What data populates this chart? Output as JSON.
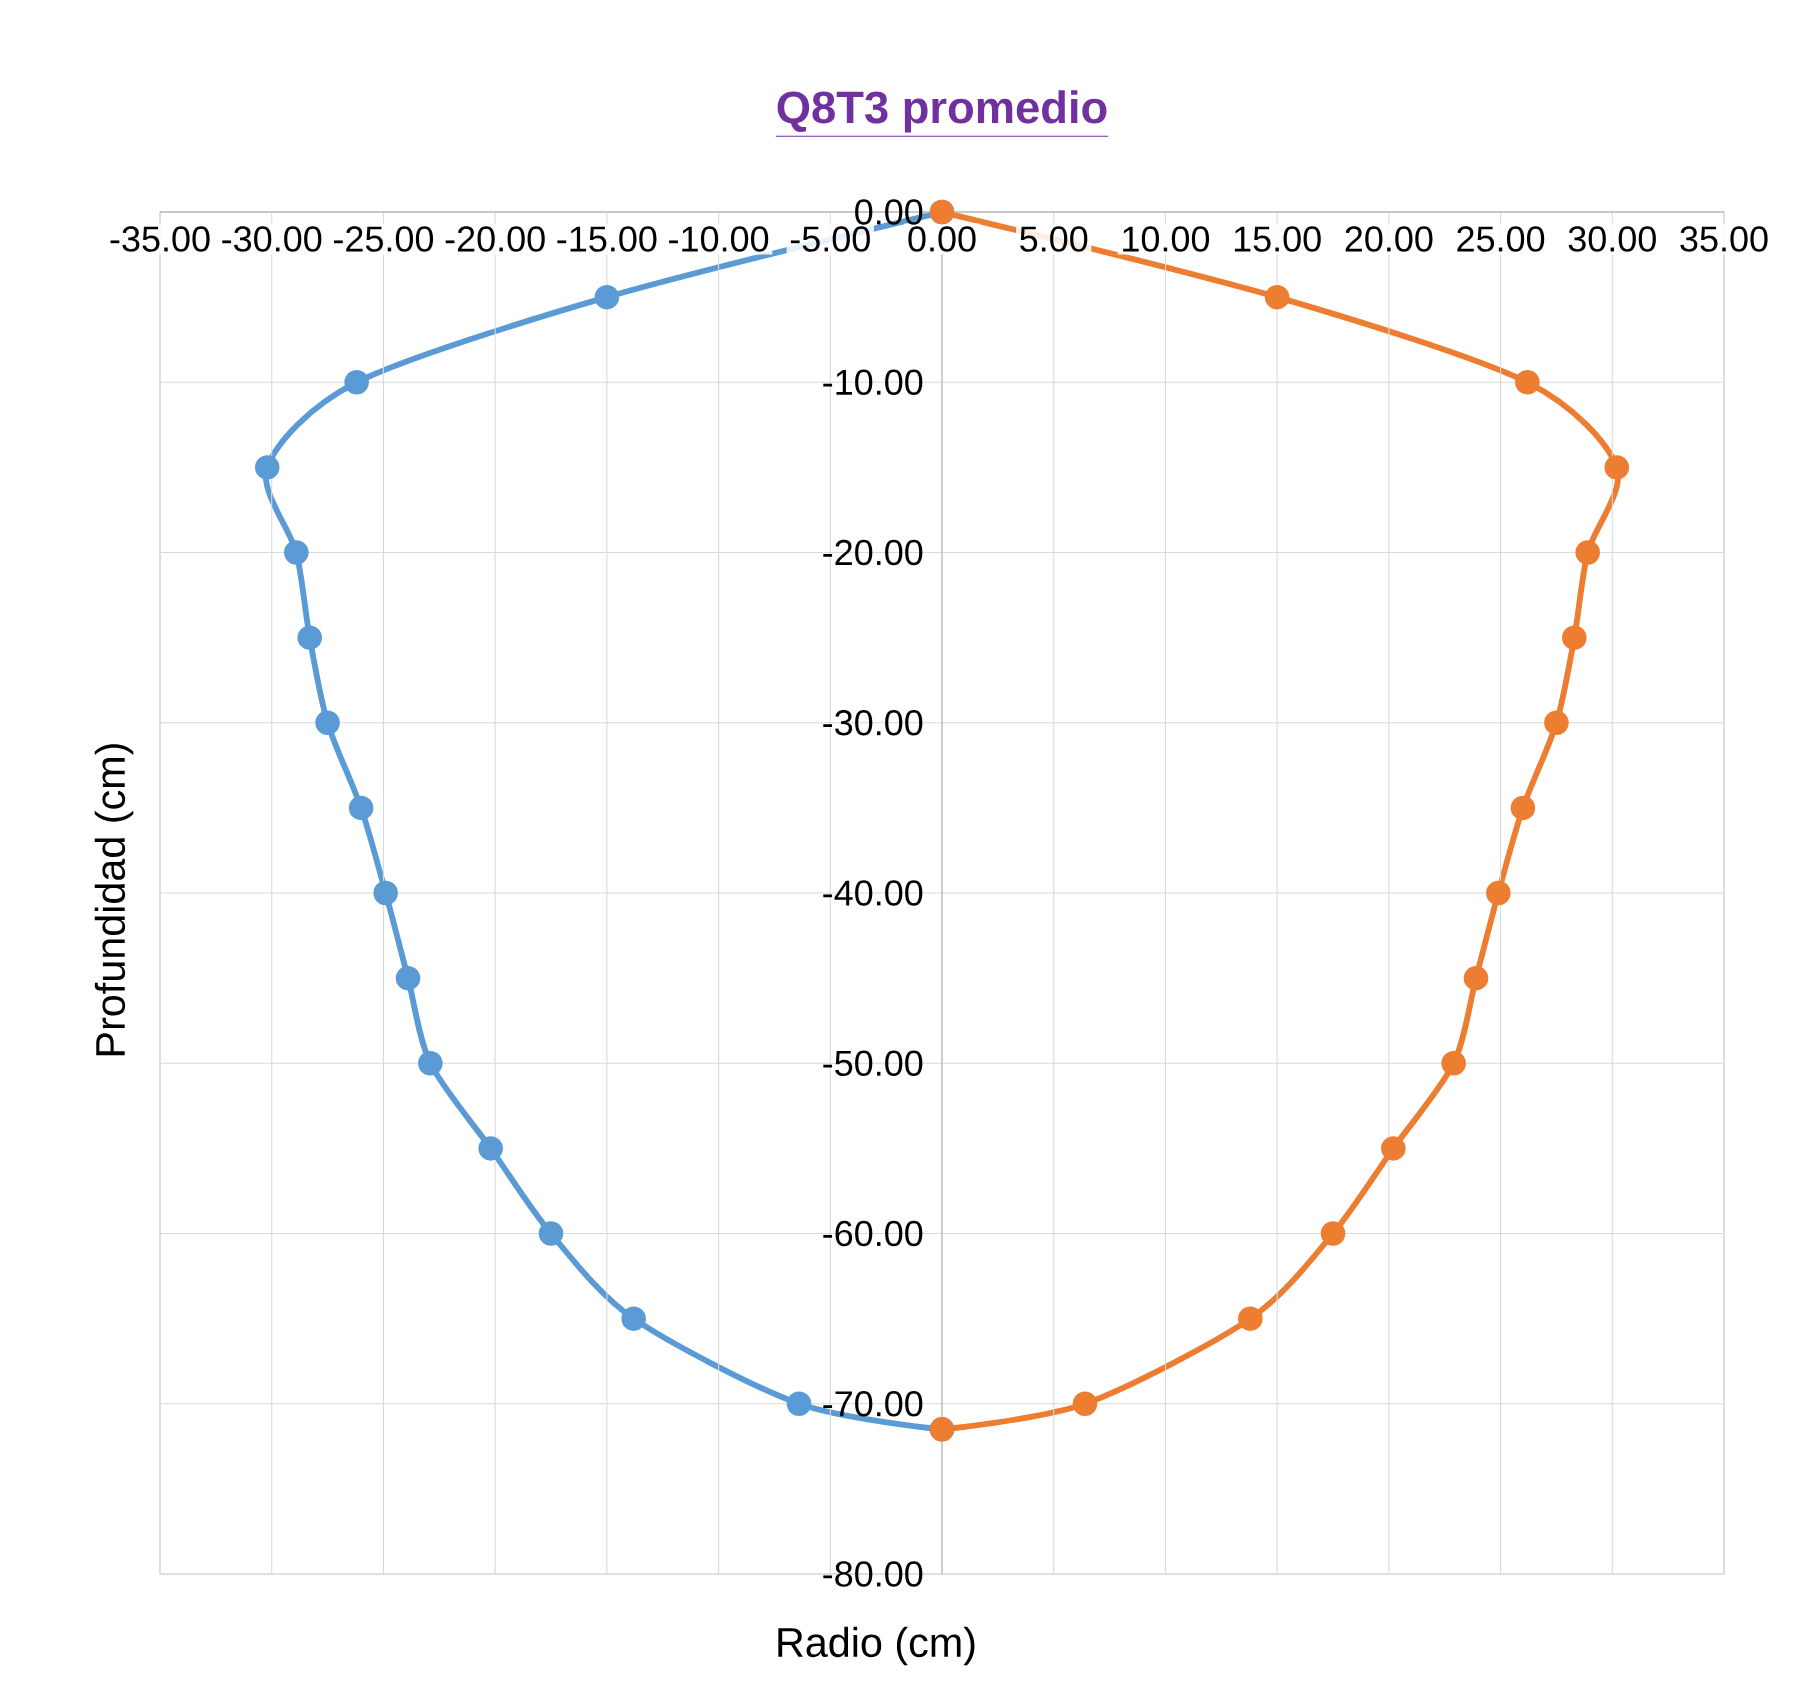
{
  "chart_data": {
    "type": "line",
    "title": "Q8T3 promedio",
    "xlabel": "Radio (cm)",
    "ylabel": "Profundidad (cm)",
    "marker": "circle",
    "grid": true,
    "xlim": [
      -35,
      35
    ],
    "ylim": [
      -80,
      0
    ],
    "xticks": [
      {
        "value": -35,
        "label": "-35.00"
      },
      {
        "value": -30,
        "label": "-30.00"
      },
      {
        "value": -25,
        "label": "-25.00"
      },
      {
        "value": -20,
        "label": "-20.00"
      },
      {
        "value": -15,
        "label": "-15.00"
      },
      {
        "value": -10,
        "label": "-10.00"
      },
      {
        "value": -5,
        "label": "-5.00"
      },
      {
        "value": 0,
        "label": "0.00"
      },
      {
        "value": 5,
        "label": "5.00"
      },
      {
        "value": 10,
        "label": "10.00"
      },
      {
        "value": 15,
        "label": "15.00"
      },
      {
        "value": 20,
        "label": "20.00"
      },
      {
        "value": 25,
        "label": "25.00"
      },
      {
        "value": 30,
        "label": "30.00"
      },
      {
        "value": 35,
        "label": "35.00"
      }
    ],
    "yticks": [
      {
        "value": 0,
        "label": "0.00"
      },
      {
        "value": -10,
        "label": "-10.00"
      },
      {
        "value": -20,
        "label": "-20.00"
      },
      {
        "value": -30,
        "label": "-30.00"
      },
      {
        "value": -40,
        "label": "-40.00"
      },
      {
        "value": -50,
        "label": "-50.00"
      },
      {
        "value": -60,
        "label": "-60.00"
      },
      {
        "value": -70,
        "label": "-70.00"
      },
      {
        "value": -80,
        "label": "-80.00"
      }
    ],
    "series": [
      {
        "color": "#5b9bd5",
        "x": [
          0,
          -15.0,
          -26.2,
          -30.2,
          -28.9,
          -28.3,
          -27.5,
          -26.0,
          -24.9,
          -23.9,
          -22.9,
          -20.2,
          -17.5,
          -13.8,
          -6.4,
          0
        ],
        "values": [
          0,
          -5,
          -10,
          -15,
          -20,
          -25,
          -30,
          -35,
          -40,
          -45,
          -50,
          -55,
          -60,
          -65,
          -70,
          -71.5
        ]
      },
      {
        "color": "#ed7d31",
        "x": [
          0,
          15.0,
          26.2,
          30.2,
          28.9,
          28.3,
          27.5,
          26.0,
          24.9,
          23.9,
          22.9,
          20.2,
          17.5,
          13.8,
          6.4,
          0
        ],
        "values": [
          0,
          -5,
          -10,
          -15,
          -20,
          -25,
          -30,
          -35,
          -40,
          -45,
          -50,
          -55,
          -60,
          -65,
          -70,
          -71.5
        ]
      }
    ]
  }
}
